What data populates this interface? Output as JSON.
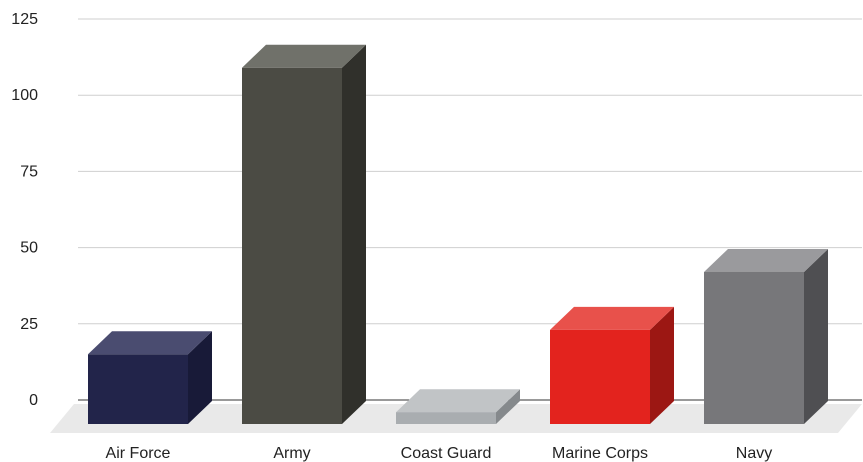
{
  "chart_data": {
    "type": "bar",
    "categories": [
      "Air Force",
      "Army",
      "Coast Guard",
      "Marine Corps",
      "Navy"
    ],
    "values": [
      15,
      109,
      -4,
      23,
      42
    ],
    "ylim": [
      -8,
      125
    ],
    "yticks": [
      0,
      25,
      50,
      75,
      100,
      125
    ],
    "ytick_labels": [
      "0",
      "25",
      "50",
      "75",
      "100",
      "125"
    ],
    "grid": true,
    "legend": "none",
    "style": "3d-column",
    "colors": {
      "Air Force": {
        "front": "#22244a",
        "top": "#4a4c70",
        "side": "#181a38"
      },
      "Army": {
        "front": "#4b4b44",
        "top": "#70716a",
        "side": "#30302b"
      },
      "Coast Guard": {
        "front": "#a9adb0",
        "top": "#c1c4c6",
        "side": "#85898c"
      },
      "Marine Corps": {
        "front": "#e3231e",
        "top": "#e8514b",
        "side": "#9c1713"
      },
      "Navy": {
        "front": "#77777a",
        "top": "#9a9a9d",
        "side": "#4f4f52"
      }
    },
    "floor_color": "#e9e9e9"
  }
}
